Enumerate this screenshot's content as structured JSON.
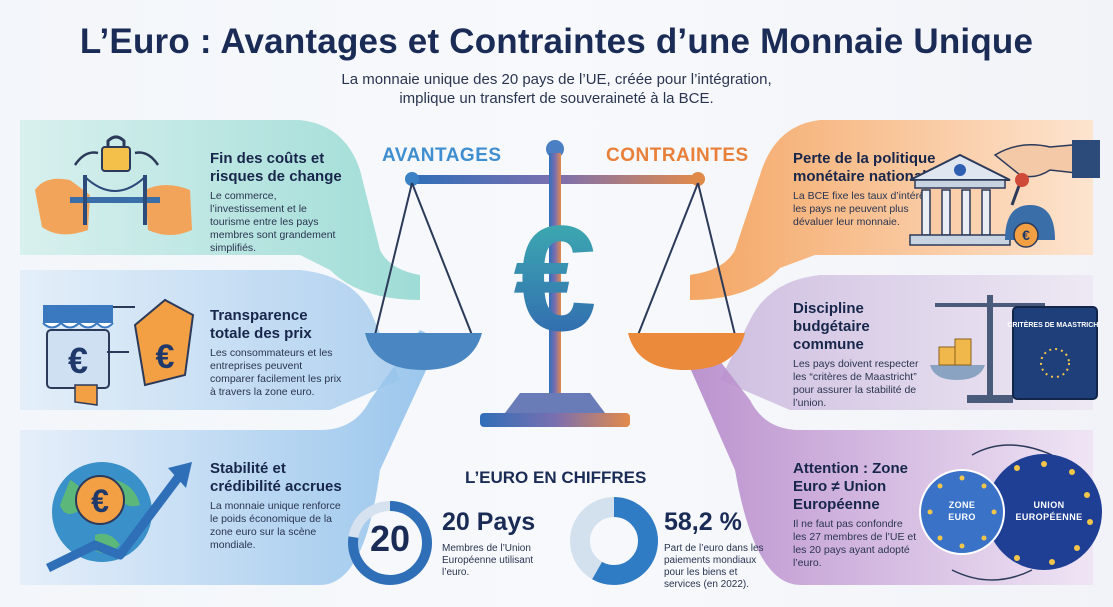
{
  "title": "L’Euro : Avantages et Contraintes d’une Monnaie Unique",
  "subtitle_line1": "La monnaie unique des 20 pays de l’UE, créée pour l’intégration,",
  "subtitle_line2": "implique un transfert de souveraineté à la BCE.",
  "avantages_heading": "AVANTAGES",
  "contraintes_heading": "CONTRAINTES",
  "left_blocks": [
    {
      "title": "Fin des coûts et risques de change",
      "text": "Le commerce, l’investissement et le tourisme entre les pays membres sont grandement simplifiés."
    },
    {
      "title": "Transparence totale des prix",
      "text": "Les consommateurs et les entreprises peuvent comparer facilement les prix à travers la zone euro."
    },
    {
      "title": "Stabilité et crédibilité accrues",
      "text": "La monnaie unique renforce le poids économique de la zone euro sur la scène mondiale."
    }
  ],
  "right_blocks": [
    {
      "title": "Perte de la politique monétaire nationale",
      "text": "La BCE fixe les taux d’intérêt, les pays ne peuvent plus dévaluer leur monnaie."
    },
    {
      "title": "Discipline budgétaire commune",
      "text": "Les pays doivent respecter les “critères de Maastricht” pour assurer la stabilité de l’union."
    },
    {
      "title": "Attention : Zone Euro ≠ Union Européenne",
      "text": "Il ne faut pas confondre les 27 membres de l’UE et les 20 pays ayant adopté l’euro."
    }
  ],
  "stats": {
    "heading": "L’EURO EN CHIFFRES",
    "pays_ring_number": "20",
    "pays_title": "20 Pays",
    "pays_text": "Membres de l’Union Européenne utilisant l’euro.",
    "share_value": 58.2,
    "share_title": "58,2 %",
    "share_text": "Part de l’euro dans les paiements mondiaux pour les biens et services (en 2022)."
  },
  "book_label": "CRITÈRES DE MAASTRICHT",
  "zone_euro_label": "ZONE EURO",
  "union_label": "UNION EUROPÉENNE",
  "colors": {
    "teal": "#3fb8b0",
    "blue": "#2f7cc4",
    "orange": "#ef8a3c",
    "purple": "#8a4fa8",
    "navy": "#1a2b55"
  }
}
